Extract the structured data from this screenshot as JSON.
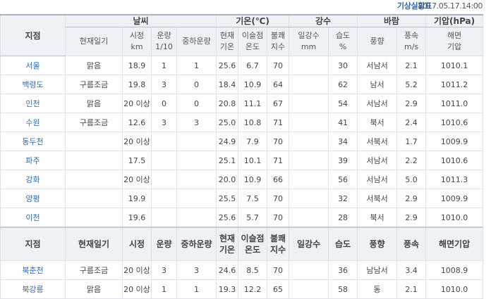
{
  "header": {
    "title": "기상실황표",
    "timestamp": "2017.05.17.14:00"
  },
  "groups": {
    "station": "지점",
    "weather": "날씨",
    "temp": "기온(℃)",
    "precip": "강수",
    "wind": "바람",
    "pressure": "기압(hPa)"
  },
  "subheaders": {
    "current_weather": "현재일기",
    "visibility": "시정",
    "visibility_unit": "km",
    "cloud": "운량",
    "cloud_unit": "1/10",
    "mid_low_cloud": "중하운량",
    "cur_temp_1": "현재",
    "cur_temp_2": "기온",
    "dew_1": "이슬점",
    "dew_2": "온도",
    "discomfort_1": "불쾌",
    "discomfort_2": "지수",
    "precip_amount": "일강수",
    "precip_unit": "mm",
    "humidity": "습도",
    "humidity_unit": "%",
    "wind_dir": "풍향",
    "wind_speed": "풍속",
    "wind_speed_unit": "m/s",
    "sea_level_1": "해면",
    "sea_level_2": "기압"
  },
  "rows": [
    {
      "station": "서울",
      "weather": "맑음",
      "vis": "18.9",
      "cloud": "1",
      "low": "1",
      "temp": "25.6",
      "dew": "6.7",
      "di": "70",
      "rain": "",
      "hum": "30",
      "wdir": "서남서",
      "wspd": "2.1",
      "pres": "1010.1"
    },
    {
      "station": "백령도",
      "weather": "구름조금",
      "vis": "19.8",
      "cloud": "3",
      "low": "0",
      "temp": "18.4",
      "dew": "10.9",
      "di": "64",
      "rain": "",
      "hum": "62",
      "wdir": "남서",
      "wspd": "5.2",
      "pres": "1011.2"
    },
    {
      "station": "인천",
      "weather": "맑음",
      "vis": "20 이상",
      "cloud": "0",
      "low": "0",
      "temp": "20.8",
      "dew": "11.1",
      "di": "67",
      "rain": "",
      "hum": "54",
      "wdir": "서남서",
      "wspd": "2.9",
      "pres": "1011.0"
    },
    {
      "station": "수원",
      "weather": "구름조금",
      "vis": "12.6",
      "cloud": "3",
      "low": "3",
      "temp": "25.0",
      "dew": "10.8",
      "di": "71",
      "rain": "",
      "hum": "41",
      "wdir": "북서",
      "wspd": "2.4",
      "pres": "1010.6"
    },
    {
      "station": "동두천",
      "weather": "",
      "vis": "20 이상",
      "cloud": "",
      "low": "",
      "temp": "24.9",
      "dew": "7.9",
      "di": "70",
      "rain": "",
      "hum": "34",
      "wdir": "서북서",
      "wspd": "1.7",
      "pres": "1009.9"
    },
    {
      "station": "파주",
      "weather": "",
      "vis": "17.5",
      "cloud": "",
      "low": "",
      "temp": "25.1",
      "dew": "10.1",
      "di": "71",
      "rain": "",
      "hum": "39",
      "wdir": "서남서",
      "wspd": "2.2",
      "pres": "1010.6"
    },
    {
      "station": "강화",
      "weather": "",
      "vis": "20 이상",
      "cloud": "",
      "low": "",
      "temp": "20.0",
      "dew": "10.9",
      "di": "66",
      "rain": "",
      "hum": "56",
      "wdir": "서남서",
      "wspd": "5.0",
      "pres": "1011.3"
    },
    {
      "station": "양평",
      "weather": "",
      "vis": "19.9",
      "cloud": "",
      "low": "",
      "temp": "25.5",
      "dew": "7.5",
      "di": "70",
      "rain": "",
      "hum": "32",
      "wdir": "서북서",
      "wspd": "2.9",
      "pres": "1009.9"
    },
    {
      "station": "이천",
      "weather": "",
      "vis": "19.6",
      "cloud": "",
      "low": "",
      "temp": "25.6",
      "dew": "5.7",
      "di": "70",
      "rain": "",
      "hum": "28",
      "wdir": "북서",
      "wspd": "2.9",
      "pres": "1010.0"
    }
  ],
  "repeat_header": {
    "station": "지점",
    "current_weather": "현재일기",
    "visibility": "시정",
    "cloud": "운량",
    "mid_low_cloud": "중하운량",
    "cur_temp_1": "현재",
    "cur_temp_2": "기온",
    "dew_1": "이슬점",
    "dew_2": "온도",
    "discomfort_1": "불쾌",
    "discomfort_2": "지수",
    "precip": "일강수",
    "humidity": "습도",
    "wind_dir": "풍향",
    "wind_speed": "풍속",
    "sea_level": "해면기압"
  },
  "rows2": [
    {
      "station": "북춘천",
      "weather": "구름조금",
      "vis": "20 이상",
      "cloud": "3",
      "low": "3",
      "temp": "24.6",
      "dew": "8.5",
      "di": "70",
      "rain": "",
      "hum": "36",
      "wdir": "남남서",
      "wspd": "3.4",
      "pres": "1008.9"
    },
    {
      "station": "북강릉",
      "weather": "맑음",
      "vis": "20 이상",
      "cloud": "1",
      "low": "1",
      "temp": "19.3",
      "dew": "12.2",
      "di": "65",
      "rain": "",
      "hum": "58",
      "wdir": "동",
      "wspd": "2.1",
      "pres": "1010.0"
    }
  ]
}
